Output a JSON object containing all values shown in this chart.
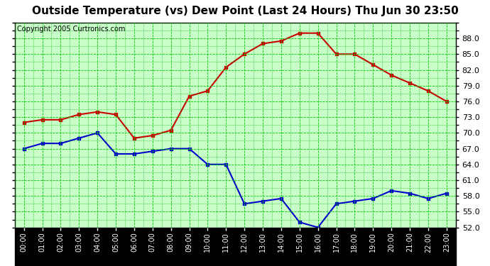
{
  "title": "Outside Temperature (vs) Dew Point (Last 24 Hours) Thu Jun 30 23:50",
  "copyright": "Copyright 2005 Curtronics.com",
  "x_labels": [
    "00:00",
    "01:00",
    "02:00",
    "03:00",
    "04:00",
    "05:00",
    "06:00",
    "07:00",
    "08:00",
    "09:00",
    "10:00",
    "11:00",
    "12:00",
    "13:00",
    "14:00",
    "15:00",
    "16:00",
    "17:00",
    "18:00",
    "19:00",
    "20:00",
    "21:00",
    "22:00",
    "23:00"
  ],
  "temp_y": [
    72.0,
    72.5,
    72.5,
    73.5,
    74.0,
    73.5,
    69.0,
    69.5,
    70.5,
    77.0,
    78.0,
    82.5,
    85.0,
    87.0,
    87.5,
    89.0,
    89.0,
    85.0,
    85.0,
    83.0,
    81.0,
    79.5,
    78.0,
    76.0
  ],
  "dew_y": [
    67.0,
    68.0,
    68.0,
    69.0,
    70.0,
    66.0,
    66.0,
    66.5,
    67.0,
    67.0,
    64.0,
    64.0,
    56.5,
    57.0,
    57.5,
    53.0,
    52.0,
    56.5,
    57.0,
    57.5,
    59.0,
    58.5,
    57.5,
    58.5
  ],
  "temp_color": "#cc0000",
  "dew_color": "#0000cc",
  "plot_bg": "#c8ffc8",
  "outer_bg": "#ffffff",
  "xtick_bg": "#000000",
  "title_color": "#000000",
  "grid_color": "#00cc00",
  "grid_minor_color": "#00aa00",
  "spine_color": "#000000",
  "ylim": [
    52.0,
    91.0
  ],
  "yticks": [
    52.0,
    55.0,
    58.0,
    61.0,
    64.0,
    67.0,
    70.0,
    73.0,
    76.0,
    79.0,
    82.0,
    85.0,
    88.0
  ],
  "marker": "s",
  "marker_size": 3,
  "linewidth": 1.5,
  "title_fontsize": 11,
  "copyright_fontsize": 7,
  "ytick_fontsize": 8,
  "xtick_fontsize": 7
}
